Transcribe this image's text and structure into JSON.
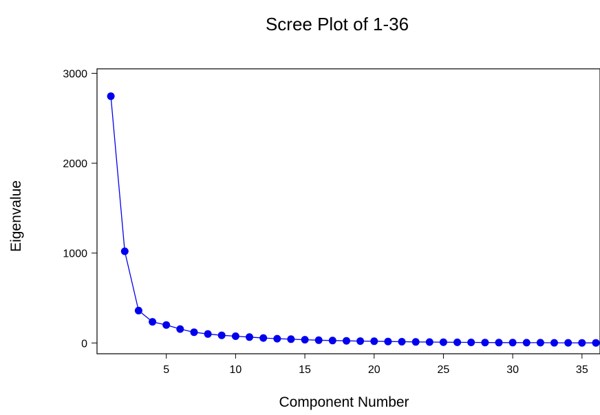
{
  "chart_data": {
    "type": "line",
    "title": "Scree Plot of 1-36",
    "xlabel": "Component Number",
    "ylabel": "Eigenvalue",
    "xlim": [
      0,
      36.3
    ],
    "ylim": [
      -120,
      3050
    ],
    "x_ticks": [
      5,
      10,
      15,
      20,
      25,
      30,
      35
    ],
    "y_ticks": [
      0,
      1000,
      2000,
      3000
    ],
    "color": "#0000ee",
    "grid": false,
    "series": [
      {
        "x": [
          1,
          2,
          3,
          4,
          5,
          6,
          7,
          8,
          9,
          10,
          11,
          12,
          13,
          14,
          15,
          16,
          17,
          18,
          19,
          20,
          21,
          22,
          23,
          24,
          25,
          26,
          27,
          28,
          29,
          30,
          31,
          32,
          33,
          34,
          35,
          36
        ],
        "values": [
          2745,
          1020,
          360,
          235,
          200,
          155,
          120,
          100,
          85,
          75,
          65,
          55,
          48,
          42,
          36,
          31,
          27,
          24,
          21,
          19,
          16,
          14,
          12,
          10,
          9,
          7,
          6,
          5,
          4,
          4,
          3,
          3,
          2,
          2,
          1,
          1
        ]
      }
    ]
  }
}
